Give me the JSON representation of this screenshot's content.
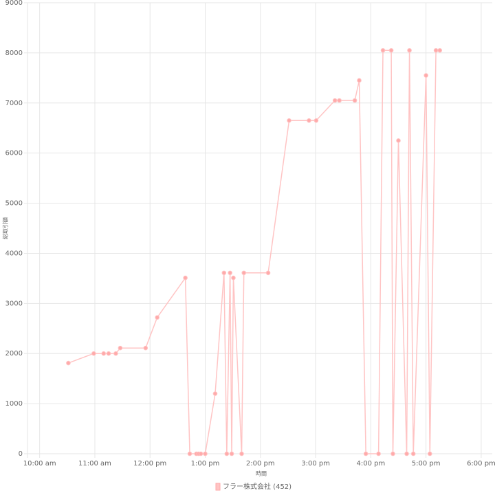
{
  "chart_data": {
    "type": "line",
    "x_label": "時間",
    "y_label": "総取引額",
    "x": [
      10.52,
      10.98,
      11.16,
      11.25,
      11.38,
      11.46,
      11.92,
      12.13,
      12.64,
      12.72,
      12.84,
      12.88,
      12.92,
      13.0,
      13.18,
      13.34,
      13.39,
      13.45,
      13.48,
      13.51,
      13.66,
      13.7,
      14.14,
      14.52,
      14.88,
      15.01,
      15.35,
      15.43,
      15.71,
      15.79,
      15.91,
      16.14,
      16.22,
      16.37,
      16.4,
      16.5,
      16.65,
      16.7,
      16.77,
      17.0,
      17.07,
      17.18,
      17.25
    ],
    "series": [
      {
        "name": "フラー株式会社 (452)",
        "color": "#ffc4c4",
        "point_color": "#ffaaaa",
        "values": [
          1810,
          2000,
          2000,
          2000,
          2000,
          2110,
          2110,
          2720,
          3510,
          0,
          0,
          0,
          0,
          0,
          1200,
          3610,
          0,
          3610,
          0,
          3510,
          0,
          3610,
          3610,
          6650,
          6650,
          6650,
          7050,
          7050,
          7050,
          7450,
          0,
          0,
          8050,
          8050,
          0,
          6250,
          0,
          8050,
          0,
          7550,
          0,
          8050,
          8050
        ]
      }
    ],
    "xlim": [
      9.78,
      18.2
    ],
    "xticks": [
      {
        "value": 10,
        "label": "10:00 am"
      },
      {
        "value": 11,
        "label": "11:00 am"
      },
      {
        "value": 12,
        "label": "12:00 pm"
      },
      {
        "value": 13,
        "label": "1:00 pm"
      },
      {
        "value": 14,
        "label": "2:00 pm"
      },
      {
        "value": 15,
        "label": "3:00 pm"
      },
      {
        "value": 16,
        "label": "4:00 pm"
      },
      {
        "value": 17,
        "label": "5:00 pm"
      },
      {
        "value": 18,
        "label": "6:00 pm"
      }
    ],
    "ylim": [
      0,
      9000
    ],
    "yticks": [
      0,
      1000,
      2000,
      3000,
      4000,
      5000,
      6000,
      7000,
      8000,
      9000
    ],
    "grid": true
  }
}
